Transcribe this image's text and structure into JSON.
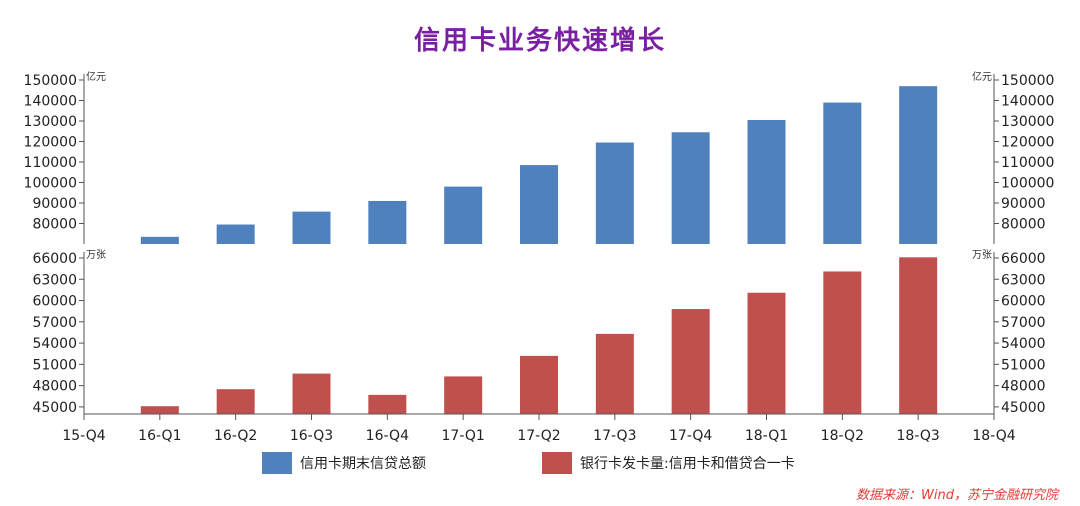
{
  "chart_data": {
    "type": "bar",
    "title": "信用卡业务快速增长",
    "categories": [
      "15-Q4",
      "16-Q1",
      "16-Q2",
      "16-Q3",
      "16-Q4",
      "17-Q1",
      "17-Q2",
      "17-Q3",
      "17-Q4",
      "18-Q1",
      "18-Q2",
      "18-Q3",
      "18-Q4"
    ],
    "panels": [
      {
        "name": "信用卡期末信贷总额",
        "unit": "亿元",
        "color": "#4f81bd",
        "ylim": [
          70000,
          150000
        ],
        "ticks": [
          80000,
          90000,
          100000,
          110000,
          120000,
          130000,
          140000,
          150000
        ],
        "values": [
          null,
          73500,
          79500,
          85800,
          91000,
          98000,
          108500,
          119500,
          124500,
          130500,
          139000,
          147000,
          null
        ]
      },
      {
        "name": "银行卡发卡量:信用卡和借贷合一卡",
        "unit": "万张",
        "color": "#c0504d",
        "ylim": [
          44000,
          66000
        ],
        "ticks": [
          45000,
          48000,
          51000,
          54000,
          57000,
          60000,
          63000,
          66000
        ],
        "values": [
          null,
          45100,
          47500,
          49700,
          46700,
          49300,
          52200,
          55300,
          58800,
          61100,
          64100,
          66100,
          null
        ]
      }
    ]
  },
  "legend": {
    "blue": "信用卡期末信贷总额",
    "red": "银行卡发卡量:信用卡和借贷合一卡"
  },
  "source": "数据来源：Wind，苏宁金融研究院"
}
